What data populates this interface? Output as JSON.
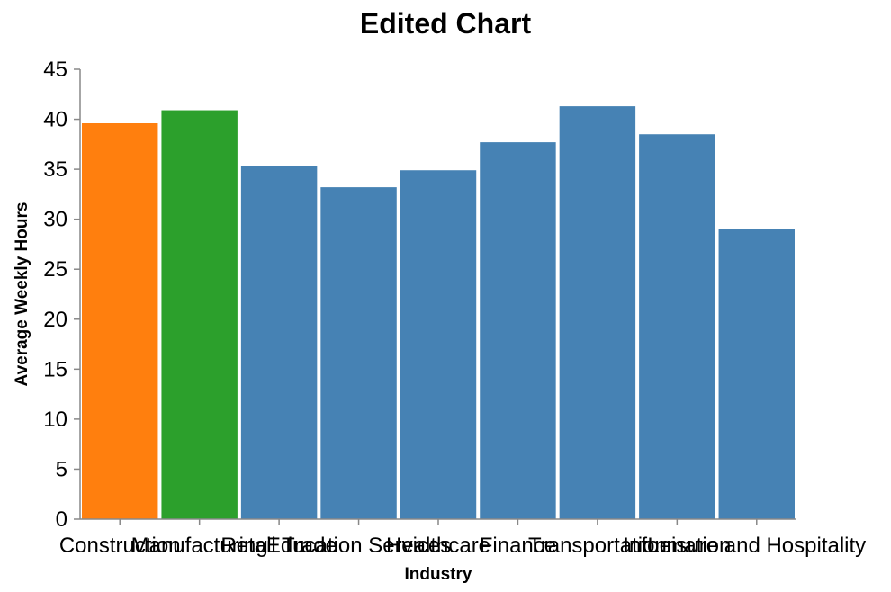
{
  "chart_data": {
    "type": "bar",
    "title": "Edited Chart",
    "xlabel": "Industry",
    "ylabel": "Average Weekly Hours",
    "ylim": [
      0,
      45
    ],
    "yticks": [
      0,
      5,
      10,
      15,
      20,
      25,
      30,
      35,
      40,
      45
    ],
    "grid": false,
    "categories": [
      "Construction",
      "Manufacturing",
      "Retail Trade",
      "Education Services",
      "Healthcare",
      "Finance",
      "Transportation",
      "Information",
      "Leisure and Hospitality"
    ],
    "values": [
      39.6,
      40.9,
      35.3,
      33.2,
      34.9,
      37.7,
      41.3,
      38.5,
      29.0
    ],
    "colors": [
      "#ff7f0e",
      "#2ca02c",
      "#4682b4",
      "#4682b4",
      "#4682b4",
      "#4682b4",
      "#4682b4",
      "#4682b4",
      "#4682b4"
    ]
  }
}
